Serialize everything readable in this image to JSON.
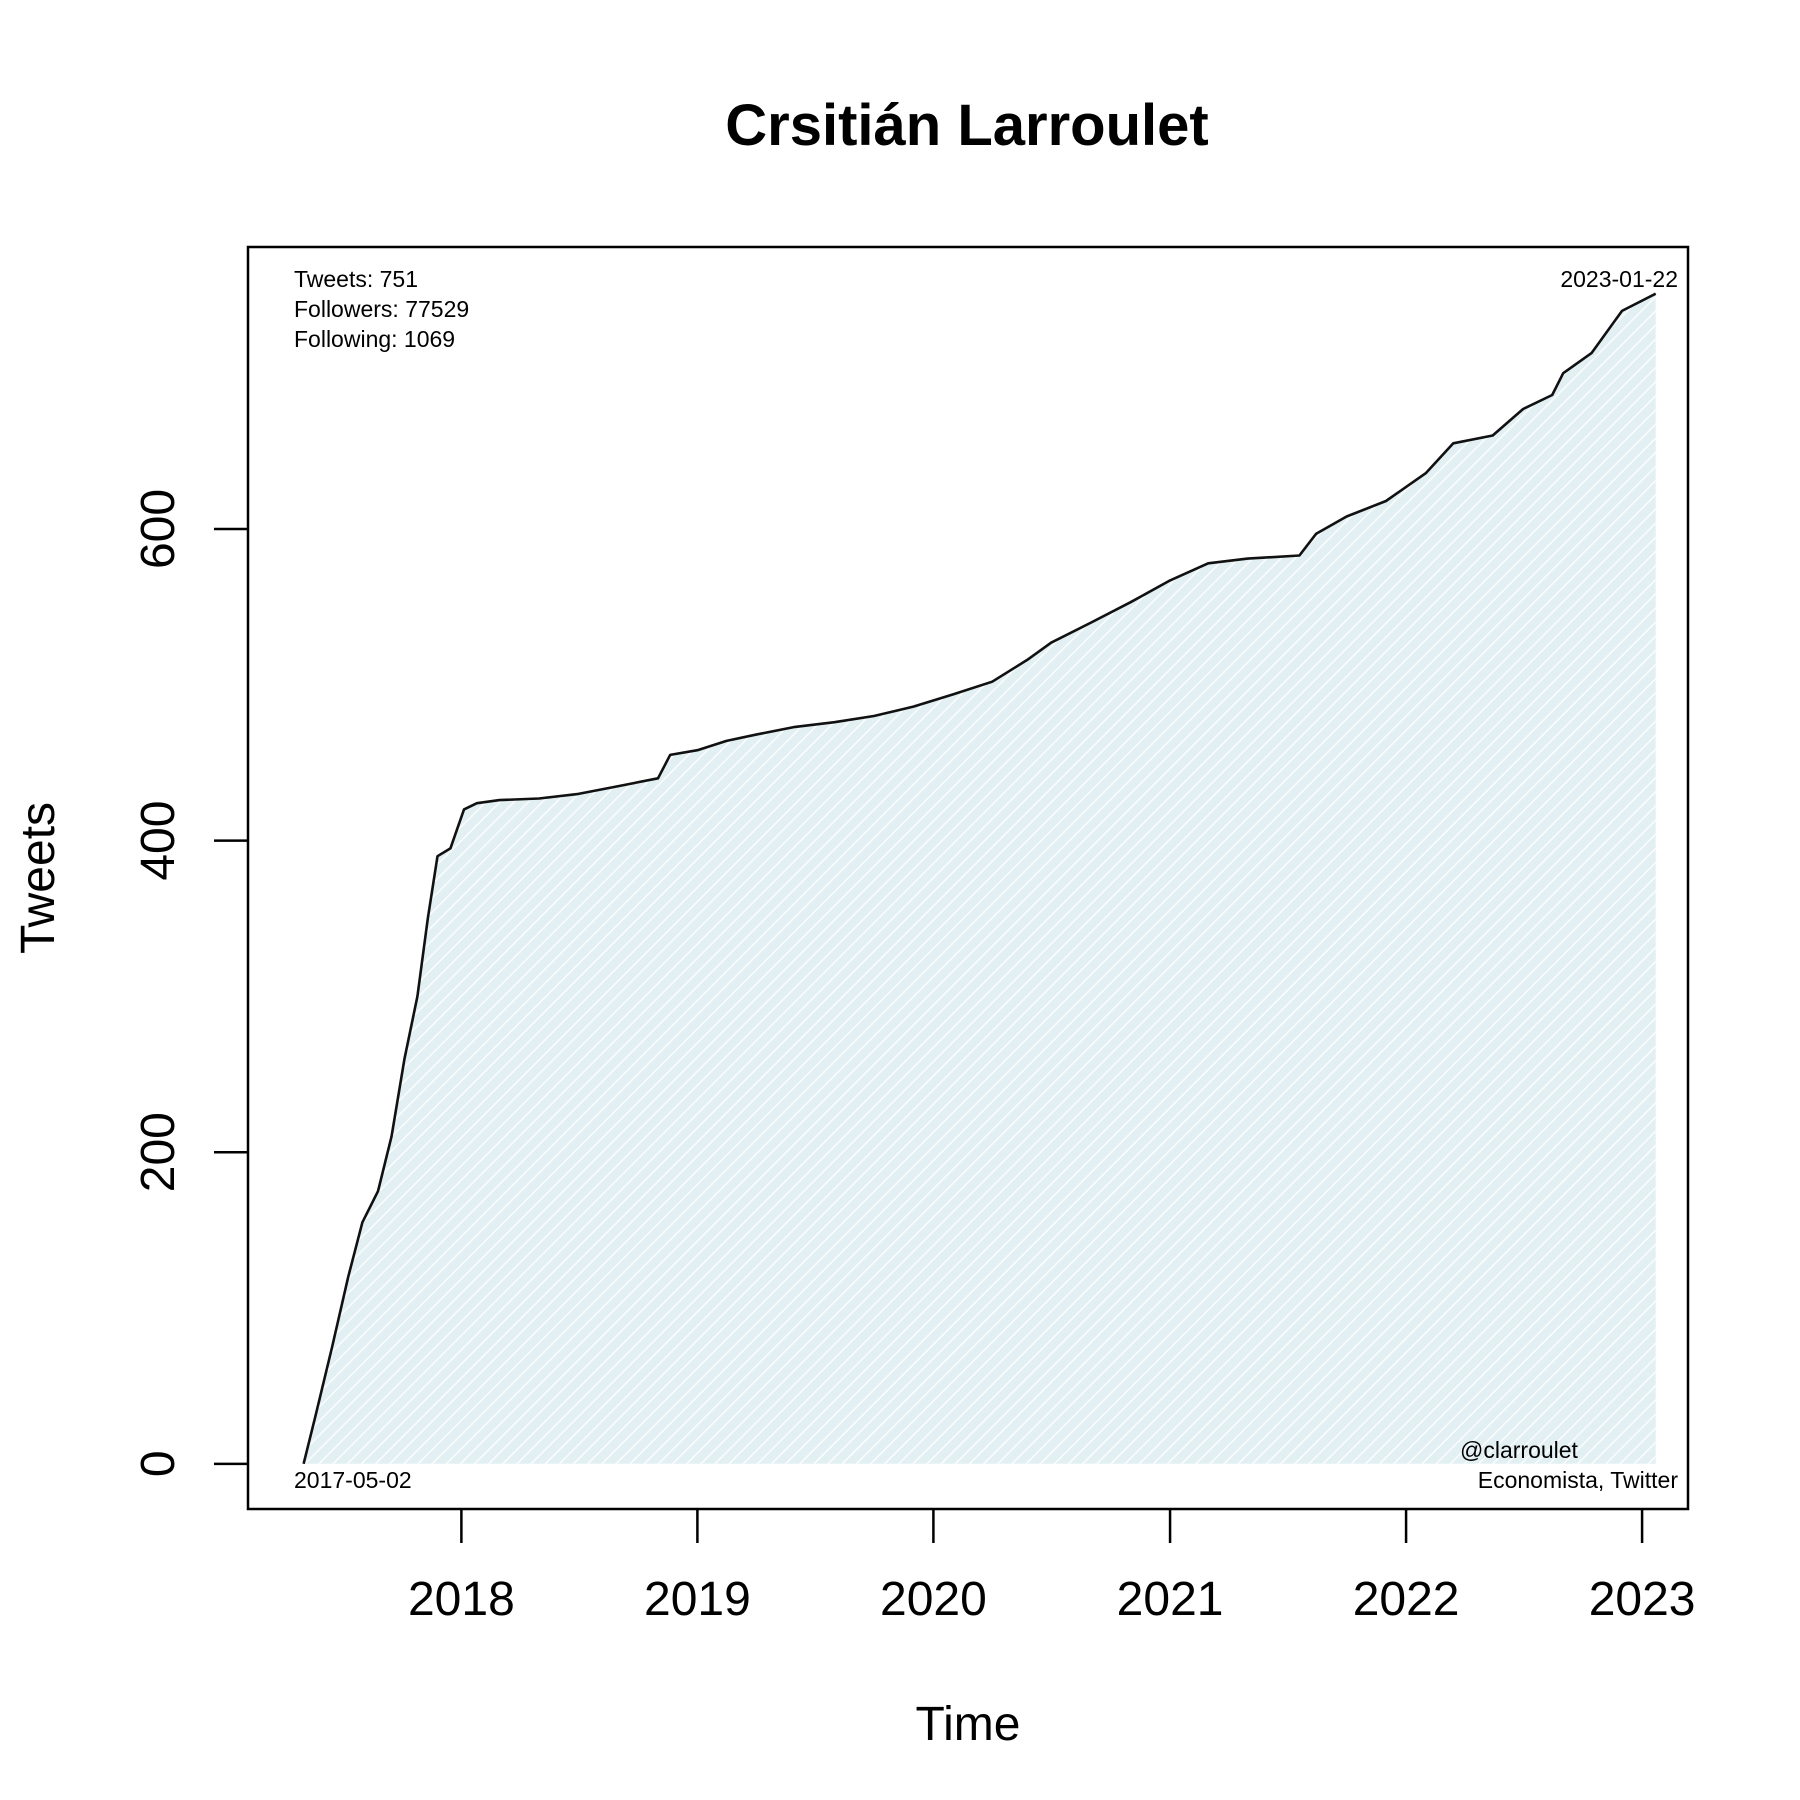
{
  "chart_data": {
    "type": "area",
    "title": "Crsitián Larroulet",
    "xlabel": "Time",
    "ylabel": "Tweets",
    "x_ticks": [
      "2018",
      "2019",
      "2020",
      "2021",
      "2022",
      "2023"
    ],
    "y_ticks": [
      "0",
      "200",
      "400",
      "600"
    ],
    "xlim": [
      "2017-02-05",
      "2023-03-13"
    ],
    "ylim": [
      -29,
      781
    ],
    "grid": false,
    "line_color": "#111111",
    "fill_color": "#e3f0f3",
    "stats": {
      "tweets": "Tweets: 751",
      "followers": "Followers: 77529",
      "following": "Following: 1069"
    },
    "start_label": "2017-05-02",
    "end_label": "2023-01-22",
    "handle": "@clarroulet",
    "description": "Economista, Twitter",
    "series": [
      {
        "x": [
          "2017-05-02",
          "2017-05-20",
          "2017-06-15",
          "2017-07-10",
          "2017-08-01",
          "2017-08-25",
          "2017-09-15",
          "2017-10-05",
          "2017-10-25",
          "2017-11-10",
          "2017-11-25",
          "2017-12-15",
          "2018-01-05",
          "2018-01-25",
          "2018-03-01",
          "2018-05-01",
          "2018-07-01",
          "2018-09-01",
          "2018-11-01",
          "2018-11-20",
          "2019-01-01",
          "2019-02-15",
          "2019-04-01",
          "2019-06-01",
          "2019-08-01",
          "2019-10-01",
          "2019-12-01",
          "2020-02-01",
          "2020-04-01",
          "2020-05-25",
          "2020-07-01",
          "2020-09-01",
          "2020-11-01",
          "2021-01-01",
          "2021-03-01",
          "2021-05-01",
          "2021-07-20",
          "2021-08-15",
          "2021-10-01",
          "2021-12-01",
          "2022-02-01",
          "2022-03-15",
          "2022-05-15",
          "2022-07-01",
          "2022-08-15",
          "2022-09-01",
          "2022-10-15",
          "2022-12-01",
          "2023-01-22"
        ],
        "y": [
          0,
          30,
          75,
          120,
          155,
          175,
          210,
          260,
          300,
          350,
          390,
          395,
          420,
          424,
          426,
          427,
          430,
          435,
          440,
          455,
          458,
          464,
          468,
          473,
          476,
          480,
          486,
          494,
          502,
          516,
          527,
          540,
          553,
          567,
          578,
          581,
          583,
          597,
          608,
          618,
          636,
          655,
          660,
          677,
          686,
          700,
          713,
          740,
          751
        ]
      }
    ]
  }
}
